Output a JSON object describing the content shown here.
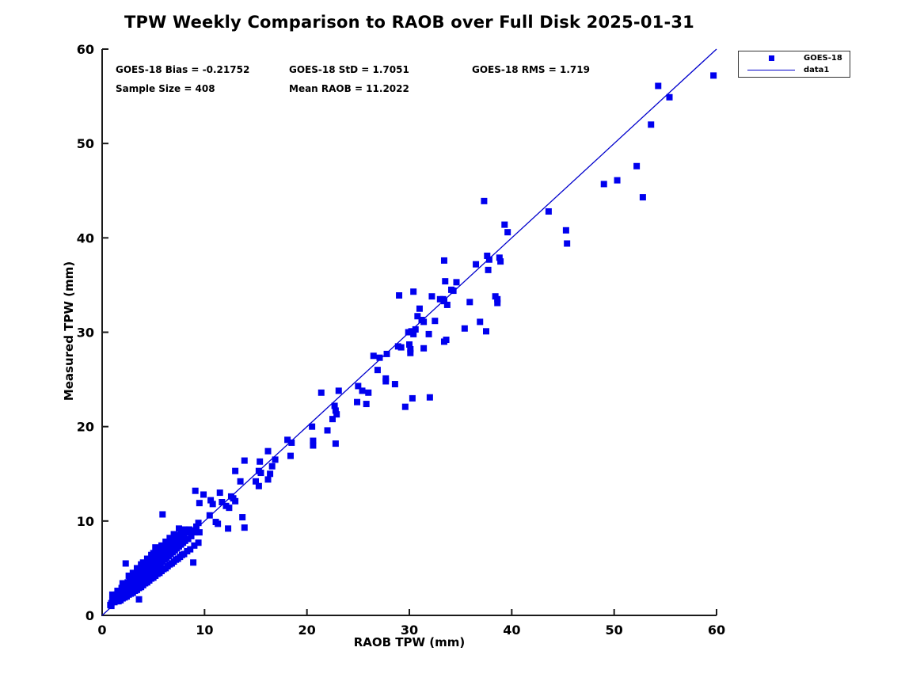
{
  "title": "TPW Weekly Comparison to RAOB over Full Disk 2025-01-31",
  "annotations": {
    "bias": "GOES-18 Bias = -0.21752",
    "std": "GOES-18 StD = 1.7051",
    "rms": "GOES-18 RMS = 1.719",
    "sample_size": "Sample Size = 408",
    "mean_raob": "Mean RAOB = 11.2022"
  },
  "legend": {
    "items": [
      {
        "label": "GOES-18",
        "swatch": "square-marker"
      },
      {
        "label": "data1",
        "swatch": "line"
      }
    ]
  },
  "colors": {
    "marker": "#0000EE",
    "line": "#0000CC",
    "axis": "#1a1a1a",
    "text": "#000000"
  },
  "chart_data": {
    "type": "scatter",
    "title": "TPW Weekly Comparison to RAOB over Full Disk 2025-01-31",
    "xlabel": "RAOB TPW (mm)",
    "ylabel": "Measured TPW (mm)",
    "xlim": [
      0,
      60
    ],
    "ylim": [
      0,
      60
    ],
    "xticks": [
      0,
      10,
      20,
      30,
      40,
      50,
      60
    ],
    "yticks": [
      0,
      10,
      20,
      30,
      40,
      50,
      60
    ],
    "grid": false,
    "legend_position": "top-right-outside",
    "identity_line": {
      "name": "data1",
      "from": [
        0,
        0
      ],
      "to": [
        60,
        60
      ]
    },
    "series": [
      {
        "name": "GOES-18",
        "marker": "square",
        "points": [
          [
            0.8,
            1.1
          ],
          [
            0.9,
            1.0
          ],
          [
            0.9,
            1.3
          ],
          [
            1.0,
            1.6
          ],
          [
            1.1,
            1.9
          ],
          [
            1.0,
            2.2
          ],
          [
            1.2,
            1.4
          ],
          [
            1.3,
            1.7
          ],
          [
            1.2,
            2.0
          ],
          [
            1.4,
            1.5
          ],
          [
            1.5,
            1.8
          ],
          [
            1.4,
            2.2
          ],
          [
            1.5,
            2.6
          ],
          [
            1.6,
            1.5
          ],
          [
            1.7,
            2.0
          ],
          [
            1.6,
            2.4
          ],
          [
            1.8,
            1.6
          ],
          [
            1.9,
            2.1
          ],
          [
            1.8,
            2.5
          ],
          [
            1.9,
            2.9
          ],
          [
            2.0,
            1.8
          ],
          [
            2.1,
            2.2
          ],
          [
            2.0,
            2.6
          ],
          [
            2.1,
            3.0
          ],
          [
            2.0,
            3.4
          ],
          [
            2.2,
            1.9
          ],
          [
            2.3,
            2.4
          ],
          [
            2.2,
            2.8
          ],
          [
            2.3,
            3.2
          ],
          [
            2.4,
            2.0
          ],
          [
            2.5,
            2.5
          ],
          [
            2.4,
            3.0
          ],
          [
            2.5,
            3.5
          ],
          [
            2.6,
            2.2
          ],
          [
            2.7,
            2.7
          ],
          [
            2.6,
            3.2
          ],
          [
            2.7,
            3.7
          ],
          [
            2.6,
            4.2
          ],
          [
            2.8,
            2.3
          ],
          [
            2.9,
            2.9
          ],
          [
            2.8,
            3.4
          ],
          [
            2.9,
            3.9
          ],
          [
            3.0,
            2.4
          ],
          [
            3.1,
            3.0
          ],
          [
            3.0,
            3.5
          ],
          [
            3.1,
            4.0
          ],
          [
            3.0,
            4.5
          ],
          [
            3.2,
            2.6
          ],
          [
            3.3,
            3.2
          ],
          [
            3.2,
            3.8
          ],
          [
            3.3,
            4.3
          ],
          [
            3.4,
            2.7
          ],
          [
            3.5,
            3.3
          ],
          [
            3.4,
            3.9
          ],
          [
            3.5,
            4.5
          ],
          [
            3.4,
            5.0
          ],
          [
            3.6,
            2.9
          ],
          [
            3.7,
            3.5
          ],
          [
            3.6,
            4.1
          ],
          [
            3.7,
            4.7
          ],
          [
            3.8,
            3.0
          ],
          [
            3.9,
            3.7
          ],
          [
            3.8,
            4.3
          ],
          [
            3.9,
            4.9
          ],
          [
            3.8,
            5.4
          ],
          [
            4.0,
            3.2
          ],
          [
            4.1,
            3.9
          ],
          [
            4.0,
            4.5
          ],
          [
            4.1,
            5.1
          ],
          [
            4.0,
            5.6
          ],
          [
            4.2,
            3.4
          ],
          [
            4.3,
            4.1
          ],
          [
            4.2,
            4.7
          ],
          [
            4.3,
            5.3
          ],
          [
            4.4,
            3.5
          ],
          [
            4.5,
            4.3
          ],
          [
            4.4,
            4.9
          ],
          [
            4.5,
            5.5
          ],
          [
            4.4,
            6.0
          ],
          [
            4.6,
            3.7
          ],
          [
            4.7,
            4.5
          ],
          [
            4.6,
            5.1
          ],
          [
            4.7,
            5.7
          ],
          [
            4.8,
            3.9
          ],
          [
            4.9,
            4.7
          ],
          [
            4.8,
            5.3
          ],
          [
            4.9,
            5.9
          ],
          [
            4.8,
            6.4
          ],
          [
            5.0,
            4.0
          ],
          [
            5.1,
            4.9
          ],
          [
            5.0,
            5.5
          ],
          [
            5.1,
            6.1
          ],
          [
            5.0,
            6.6
          ],
          [
            5.2,
            4.2
          ],
          [
            5.3,
            5.1
          ],
          [
            5.2,
            5.7
          ],
          [
            5.3,
            6.3
          ],
          [
            5.4,
            4.4
          ],
          [
            5.5,
            5.3
          ],
          [
            5.4,
            5.9
          ],
          [
            5.5,
            6.5
          ],
          [
            5.4,
            7.0
          ],
          [
            5.6,
            4.5
          ],
          [
            5.7,
            5.5
          ],
          [
            5.6,
            6.1
          ],
          [
            5.7,
            6.7
          ],
          [
            5.8,
            4.7
          ],
          [
            5.9,
            5.7
          ],
          [
            5.8,
            6.3
          ],
          [
            5.9,
            6.9
          ],
          [
            5.8,
            7.4
          ],
          [
            6.0,
            4.9
          ],
          [
            6.1,
            5.9
          ],
          [
            6.0,
            6.5
          ],
          [
            6.1,
            7.1
          ],
          [
            6.2,
            5.0
          ],
          [
            6.3,
            6.1
          ],
          [
            6.2,
            6.7
          ],
          [
            6.3,
            7.3
          ],
          [
            6.2,
            7.8
          ],
          [
            6.4,
            5.2
          ],
          [
            6.5,
            6.3
          ],
          [
            6.4,
            6.9
          ],
          [
            6.5,
            7.5
          ],
          [
            6.6,
            5.4
          ],
          [
            6.7,
            6.5
          ],
          [
            6.6,
            7.1
          ],
          [
            6.7,
            7.7
          ],
          [
            6.6,
            8.2
          ],
          [
            6.8,
            5.5
          ],
          [
            6.9,
            6.7
          ],
          [
            6.8,
            7.3
          ],
          [
            6.9,
            7.9
          ],
          [
            7.0,
            5.7
          ],
          [
            7.1,
            6.9
          ],
          [
            7.0,
            7.5
          ],
          [
            7.1,
            8.1
          ],
          [
            7.0,
            8.6
          ],
          [
            7.2,
            5.9
          ],
          [
            7.3,
            7.1
          ],
          [
            7.2,
            7.7
          ],
          [
            7.3,
            8.3
          ],
          [
            7.4,
            6.0
          ],
          [
            7.5,
            7.3
          ],
          [
            7.4,
            7.9
          ],
          [
            7.5,
            8.5
          ],
          [
            7.6,
            6.2
          ],
          [
            7.7,
            7.5
          ],
          [
            7.6,
            8.1
          ],
          [
            7.7,
            8.7
          ],
          [
            7.8,
            6.4
          ],
          [
            7.9,
            7.7
          ],
          [
            7.8,
            8.3
          ],
          [
            7.9,
            8.9
          ],
          [
            8.0,
            6.5
          ],
          [
            8.1,
            7.9
          ],
          [
            8.0,
            8.5
          ],
          [
            8.1,
            9.1
          ],
          [
            8.3,
            6.8
          ],
          [
            8.4,
            8.1
          ],
          [
            8.3,
            8.8
          ],
          [
            8.6,
            7.0
          ],
          [
            8.7,
            8.4
          ],
          [
            8.6,
            9.0
          ],
          [
            9.0,
            7.4
          ],
          [
            9.2,
            9.4
          ],
          [
            9.4,
            7.7
          ],
          [
            9.4,
            9.8
          ],
          [
            2.3,
            5.5
          ],
          [
            3.6,
            1.7
          ],
          [
            5.2,
            7.2
          ],
          [
            5.9,
            10.7
          ],
          [
            8.9,
            5.6
          ],
          [
            7.5,
            9.2
          ],
          [
            8.0,
            9.0
          ],
          [
            8.5,
            9.1
          ],
          [
            9.0,
            8.8
          ],
          [
            9.5,
            8.8
          ],
          [
            9.1,
            13.2
          ],
          [
            9.9,
            12.8
          ],
          [
            9.5,
            11.9
          ],
          [
            10.5,
            10.6
          ],
          [
            10.6,
            12.2
          ],
          [
            10.8,
            11.8
          ],
          [
            11.1,
            9.9
          ],
          [
            11.3,
            9.7
          ],
          [
            11.5,
            13.0
          ],
          [
            11.7,
            12.0
          ],
          [
            12.1,
            11.6
          ],
          [
            12.3,
            9.2
          ],
          [
            12.4,
            11.4
          ],
          [
            12.6,
            12.6
          ],
          [
            12.8,
            12.4
          ],
          [
            13.0,
            12.1
          ],
          [
            13.0,
            15.3
          ],
          [
            13.7,
            10.4
          ],
          [
            13.9,
            9.3
          ],
          [
            13.5,
            14.2
          ],
          [
            13.9,
            16.4
          ],
          [
            15.0,
            14.2
          ],
          [
            15.3,
            13.7
          ],
          [
            15.3,
            15.3
          ],
          [
            15.5,
            15.1
          ],
          [
            15.4,
            16.3
          ],
          [
            16.2,
            14.4
          ],
          [
            16.2,
            17.4
          ],
          [
            16.4,
            15.0
          ],
          [
            16.6,
            15.8
          ],
          [
            16.9,
            16.5
          ],
          [
            18.1,
            18.6
          ],
          [
            18.4,
            16.9
          ],
          [
            18.5,
            18.3
          ],
          [
            20.5,
            20.0
          ],
          [
            20.6,
            18.0
          ],
          [
            20.6,
            18.5
          ],
          [
            21.4,
            23.6
          ],
          [
            22.0,
            19.6
          ],
          [
            22.5,
            20.8
          ],
          [
            22.7,
            22.2
          ],
          [
            22.8,
            18.2
          ],
          [
            22.8,
            21.7
          ],
          [
            22.9,
            21.3
          ],
          [
            23.1,
            23.8
          ],
          [
            24.9,
            22.6
          ],
          [
            25.0,
            24.3
          ],
          [
            25.4,
            23.8
          ],
          [
            25.8,
            22.4
          ],
          [
            26.0,
            23.6
          ],
          [
            26.5,
            27.5
          ],
          [
            26.9,
            26.0
          ],
          [
            27.1,
            27.3
          ],
          [
            27.7,
            24.8
          ],
          [
            27.7,
            25.1
          ],
          [
            27.8,
            27.7
          ],
          [
            28.6,
            24.5
          ],
          [
            28.9,
            28.5
          ],
          [
            29.0,
            33.9
          ],
          [
            29.2,
            28.4
          ],
          [
            29.6,
            22.1
          ],
          [
            29.9,
            30.0
          ],
          [
            30.0,
            28.7
          ],
          [
            30.1,
            27.8
          ],
          [
            30.1,
            28.2
          ],
          [
            30.2,
            30.1
          ],
          [
            30.3,
            23.0
          ],
          [
            30.4,
            29.8
          ],
          [
            30.4,
            34.3
          ],
          [
            30.6,
            30.3
          ],
          [
            30.8,
            31.7
          ],
          [
            31.0,
            32.5
          ],
          [
            31.2,
            31.3
          ],
          [
            31.4,
            28.3
          ],
          [
            31.4,
            31.1
          ],
          [
            31.9,
            29.8
          ],
          [
            32.0,
            23.1
          ],
          [
            32.2,
            33.8
          ],
          [
            32.5,
            31.2
          ],
          [
            33.0,
            33.5
          ],
          [
            33.3,
            33.5
          ],
          [
            33.4,
            29.0
          ],
          [
            33.4,
            33.3
          ],
          [
            33.4,
            37.6
          ],
          [
            33.5,
            35.4
          ],
          [
            33.6,
            29.2
          ],
          [
            33.7,
            32.9
          ],
          [
            34.1,
            34.5
          ],
          [
            34.3,
            34.4
          ],
          [
            34.6,
            35.3
          ],
          [
            35.4,
            30.4
          ],
          [
            35.9,
            33.2
          ],
          [
            36.5,
            37.2
          ],
          [
            36.9,
            31.1
          ],
          [
            37.5,
            30.1
          ],
          [
            37.6,
            38.1
          ],
          [
            37.7,
            36.6
          ],
          [
            37.8,
            37.7
          ],
          [
            38.4,
            33.8
          ],
          [
            38.6,
            33.1
          ],
          [
            38.6,
            33.5
          ],
          [
            38.8,
            37.9
          ],
          [
            38.9,
            37.5
          ],
          [
            37.3,
            43.9
          ],
          [
            39.3,
            41.4
          ],
          [
            39.6,
            40.6
          ],
          [
            43.6,
            42.8
          ],
          [
            45.3,
            40.8
          ],
          [
            45.4,
            39.4
          ],
          [
            49.0,
            45.7
          ],
          [
            50.3,
            46.1
          ],
          [
            52.2,
            47.6
          ],
          [
            52.8,
            44.3
          ],
          [
            53.6,
            52.0
          ],
          [
            54.3,
            56.1
          ],
          [
            55.4,
            54.9
          ],
          [
            59.7,
            57.2
          ]
        ]
      }
    ]
  }
}
